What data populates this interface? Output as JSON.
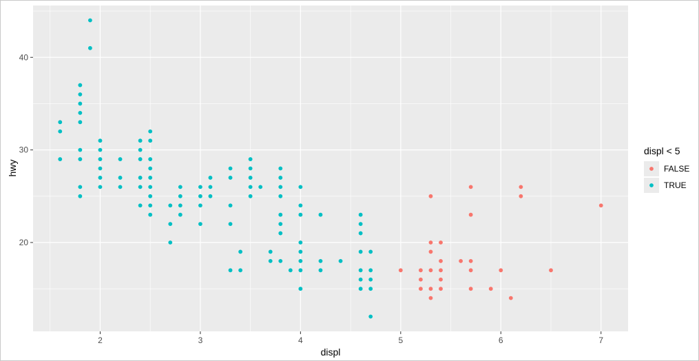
{
  "chart_data": {
    "type": "scatter",
    "title": "",
    "xlabel": "displ",
    "ylabel": "hwy",
    "xlim": [
      1.33,
      7.27
    ],
    "ylim": [
      10.4,
      45.6
    ],
    "x_ticks": [
      2,
      3,
      4,
      5,
      6,
      7
    ],
    "y_ticks": [
      20,
      30,
      40
    ],
    "grid": true,
    "legend": {
      "title": "displ < 5",
      "position": "right",
      "entries": [
        "FALSE",
        "TRUE"
      ]
    },
    "colors": {
      "FALSE": "#F8766D",
      "TRUE": "#00BFC4",
      "panel": "#EBEBEB",
      "grid": "#FFFFFF"
    },
    "series": [
      {
        "name": "FALSE",
        "points": [
          [
            5.3,
            25
          ],
          [
            5.3,
            20
          ],
          [
            5.3,
            19
          ],
          [
            5.3,
            17
          ],
          [
            5.3,
            15
          ],
          [
            5.3,
            14
          ],
          [
            5.0,
            17
          ],
          [
            5.2,
            17
          ],
          [
            5.2,
            16
          ],
          [
            5.2,
            15
          ],
          [
            5.4,
            20
          ],
          [
            5.4,
            18
          ],
          [
            5.4,
            17
          ],
          [
            5.4,
            16
          ],
          [
            5.4,
            15
          ],
          [
            5.6,
            18
          ],
          [
            5.7,
            26
          ],
          [
            5.7,
            23
          ],
          [
            5.7,
            18
          ],
          [
            5.7,
            17
          ],
          [
            5.7,
            15
          ],
          [
            5.9,
            15
          ],
          [
            6.0,
            17
          ],
          [
            6.1,
            14
          ],
          [
            6.2,
            26
          ],
          [
            6.2,
            25
          ],
          [
            6.5,
            17
          ],
          [
            7.0,
            24
          ]
        ]
      },
      {
        "name": "TRUE",
        "points": [
          [
            1.6,
            33
          ],
          [
            1.6,
            32
          ],
          [
            1.6,
            29
          ],
          [
            1.8,
            37
          ],
          [
            1.8,
            36
          ],
          [
            1.8,
            35
          ],
          [
            1.8,
            34
          ],
          [
            1.8,
            33
          ],
          [
            1.8,
            30
          ],
          [
            1.8,
            29
          ],
          [
            1.8,
            26
          ],
          [
            1.8,
            25
          ],
          [
            1.9,
            44
          ],
          [
            1.9,
            41
          ],
          [
            2.0,
            31
          ],
          [
            2.0,
            30
          ],
          [
            2.0,
            29
          ],
          [
            2.0,
            28
          ],
          [
            2.0,
            27
          ],
          [
            2.0,
            26
          ],
          [
            2.2,
            29
          ],
          [
            2.2,
            27
          ],
          [
            2.2,
            26
          ],
          [
            2.4,
            31
          ],
          [
            2.4,
            30
          ],
          [
            2.4,
            29
          ],
          [
            2.4,
            27
          ],
          [
            2.4,
            26
          ],
          [
            2.4,
            24
          ],
          [
            2.5,
            32
          ],
          [
            2.5,
            31
          ],
          [
            2.5,
            29
          ],
          [
            2.5,
            28
          ],
          [
            2.5,
            27
          ],
          [
            2.5,
            26
          ],
          [
            2.5,
            25
          ],
          [
            2.5,
            24
          ],
          [
            2.5,
            23
          ],
          [
            2.7,
            24
          ],
          [
            2.7,
            22
          ],
          [
            2.7,
            20
          ],
          [
            2.8,
            26
          ],
          [
            2.8,
            25
          ],
          [
            2.8,
            24
          ],
          [
            2.8,
            23
          ],
          [
            3.0,
            26
          ],
          [
            3.0,
            25
          ],
          [
            3.0,
            24
          ],
          [
            3.0,
            22
          ],
          [
            3.1,
            27
          ],
          [
            3.1,
            26
          ],
          [
            3.1,
            25
          ],
          [
            3.3,
            28
          ],
          [
            3.3,
            27
          ],
          [
            3.3,
            24
          ],
          [
            3.3,
            22
          ],
          [
            3.3,
            17
          ],
          [
            3.4,
            19
          ],
          [
            3.4,
            17
          ],
          [
            3.5,
            29
          ],
          [
            3.5,
            28
          ],
          [
            3.5,
            27
          ],
          [
            3.5,
            26
          ],
          [
            3.5,
            25
          ],
          [
            3.6,
            26
          ],
          [
            3.7,
            19
          ],
          [
            3.7,
            18
          ],
          [
            3.8,
            28
          ],
          [
            3.8,
            27
          ],
          [
            3.8,
            26
          ],
          [
            3.8,
            25
          ],
          [
            3.8,
            23
          ],
          [
            3.8,
            22
          ],
          [
            3.8,
            21
          ],
          [
            3.8,
            18
          ],
          [
            3.9,
            17
          ],
          [
            4.0,
            26
          ],
          [
            4.0,
            24
          ],
          [
            4.0,
            23
          ],
          [
            4.0,
            20
          ],
          [
            4.0,
            19
          ],
          [
            4.0,
            18
          ],
          [
            4.0,
            17
          ],
          [
            4.0,
            15
          ],
          [
            4.2,
            23
          ],
          [
            4.2,
            18
          ],
          [
            4.2,
            17
          ],
          [
            4.4,
            18
          ],
          [
            4.6,
            23
          ],
          [
            4.6,
            22
          ],
          [
            4.6,
            21
          ],
          [
            4.6,
            19
          ],
          [
            4.6,
            17
          ],
          [
            4.6,
            16
          ],
          [
            4.6,
            15
          ],
          [
            4.7,
            19
          ],
          [
            4.7,
            17
          ],
          [
            4.7,
            16
          ],
          [
            4.7,
            15
          ],
          [
            4.7,
            12
          ]
        ]
      }
    ]
  }
}
